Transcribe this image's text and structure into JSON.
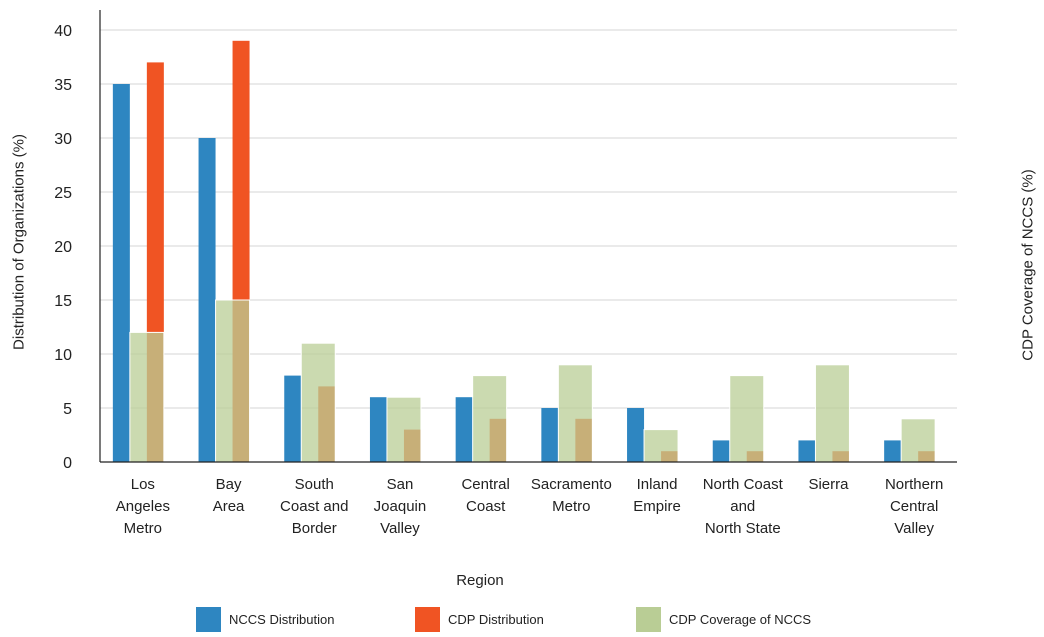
{
  "chart_data": {
    "type": "bar",
    "xlabel": "Region",
    "ylabel": "Distribution of Organizations (%)",
    "y2label": "CDP Coverage of NCCS (%)",
    "ylim": [
      0,
      40
    ],
    "yticks": [
      0,
      5,
      10,
      15,
      20,
      25,
      30,
      35,
      40
    ],
    "grid": true,
    "legend_position": "bottom",
    "categories": [
      [
        "Los",
        "Angeles",
        "Metro"
      ],
      [
        "Bay",
        "Area"
      ],
      [
        "South",
        "Coast and",
        "Border"
      ],
      [
        "San",
        "Joaquin",
        "Valley"
      ],
      [
        "Central",
        "Coast"
      ],
      [
        "Sacramento",
        "Metro"
      ],
      [
        "Inland",
        "Empire"
      ],
      [
        "North Coast",
        "and",
        "North State"
      ],
      [
        "Sierra"
      ],
      [
        "Northern",
        "Central",
        "Valley"
      ]
    ],
    "series": [
      {
        "name": "NCCS Distribution",
        "color": "#2E86C1",
        "values": [
          35,
          30,
          8,
          6,
          6,
          5,
          5,
          2,
          2,
          2
        ]
      },
      {
        "name": "CDP Distribution",
        "color": "#F05423",
        "values": [
          37,
          39,
          7,
          3,
          4,
          4,
          1,
          1,
          1,
          1
        ]
      },
      {
        "name": "CDP Coverage of NCCS",
        "color": "#B9CD95",
        "values": [
          12,
          15,
          11,
          6,
          8,
          9,
          3,
          8,
          9,
          4
        ]
      }
    ]
  }
}
